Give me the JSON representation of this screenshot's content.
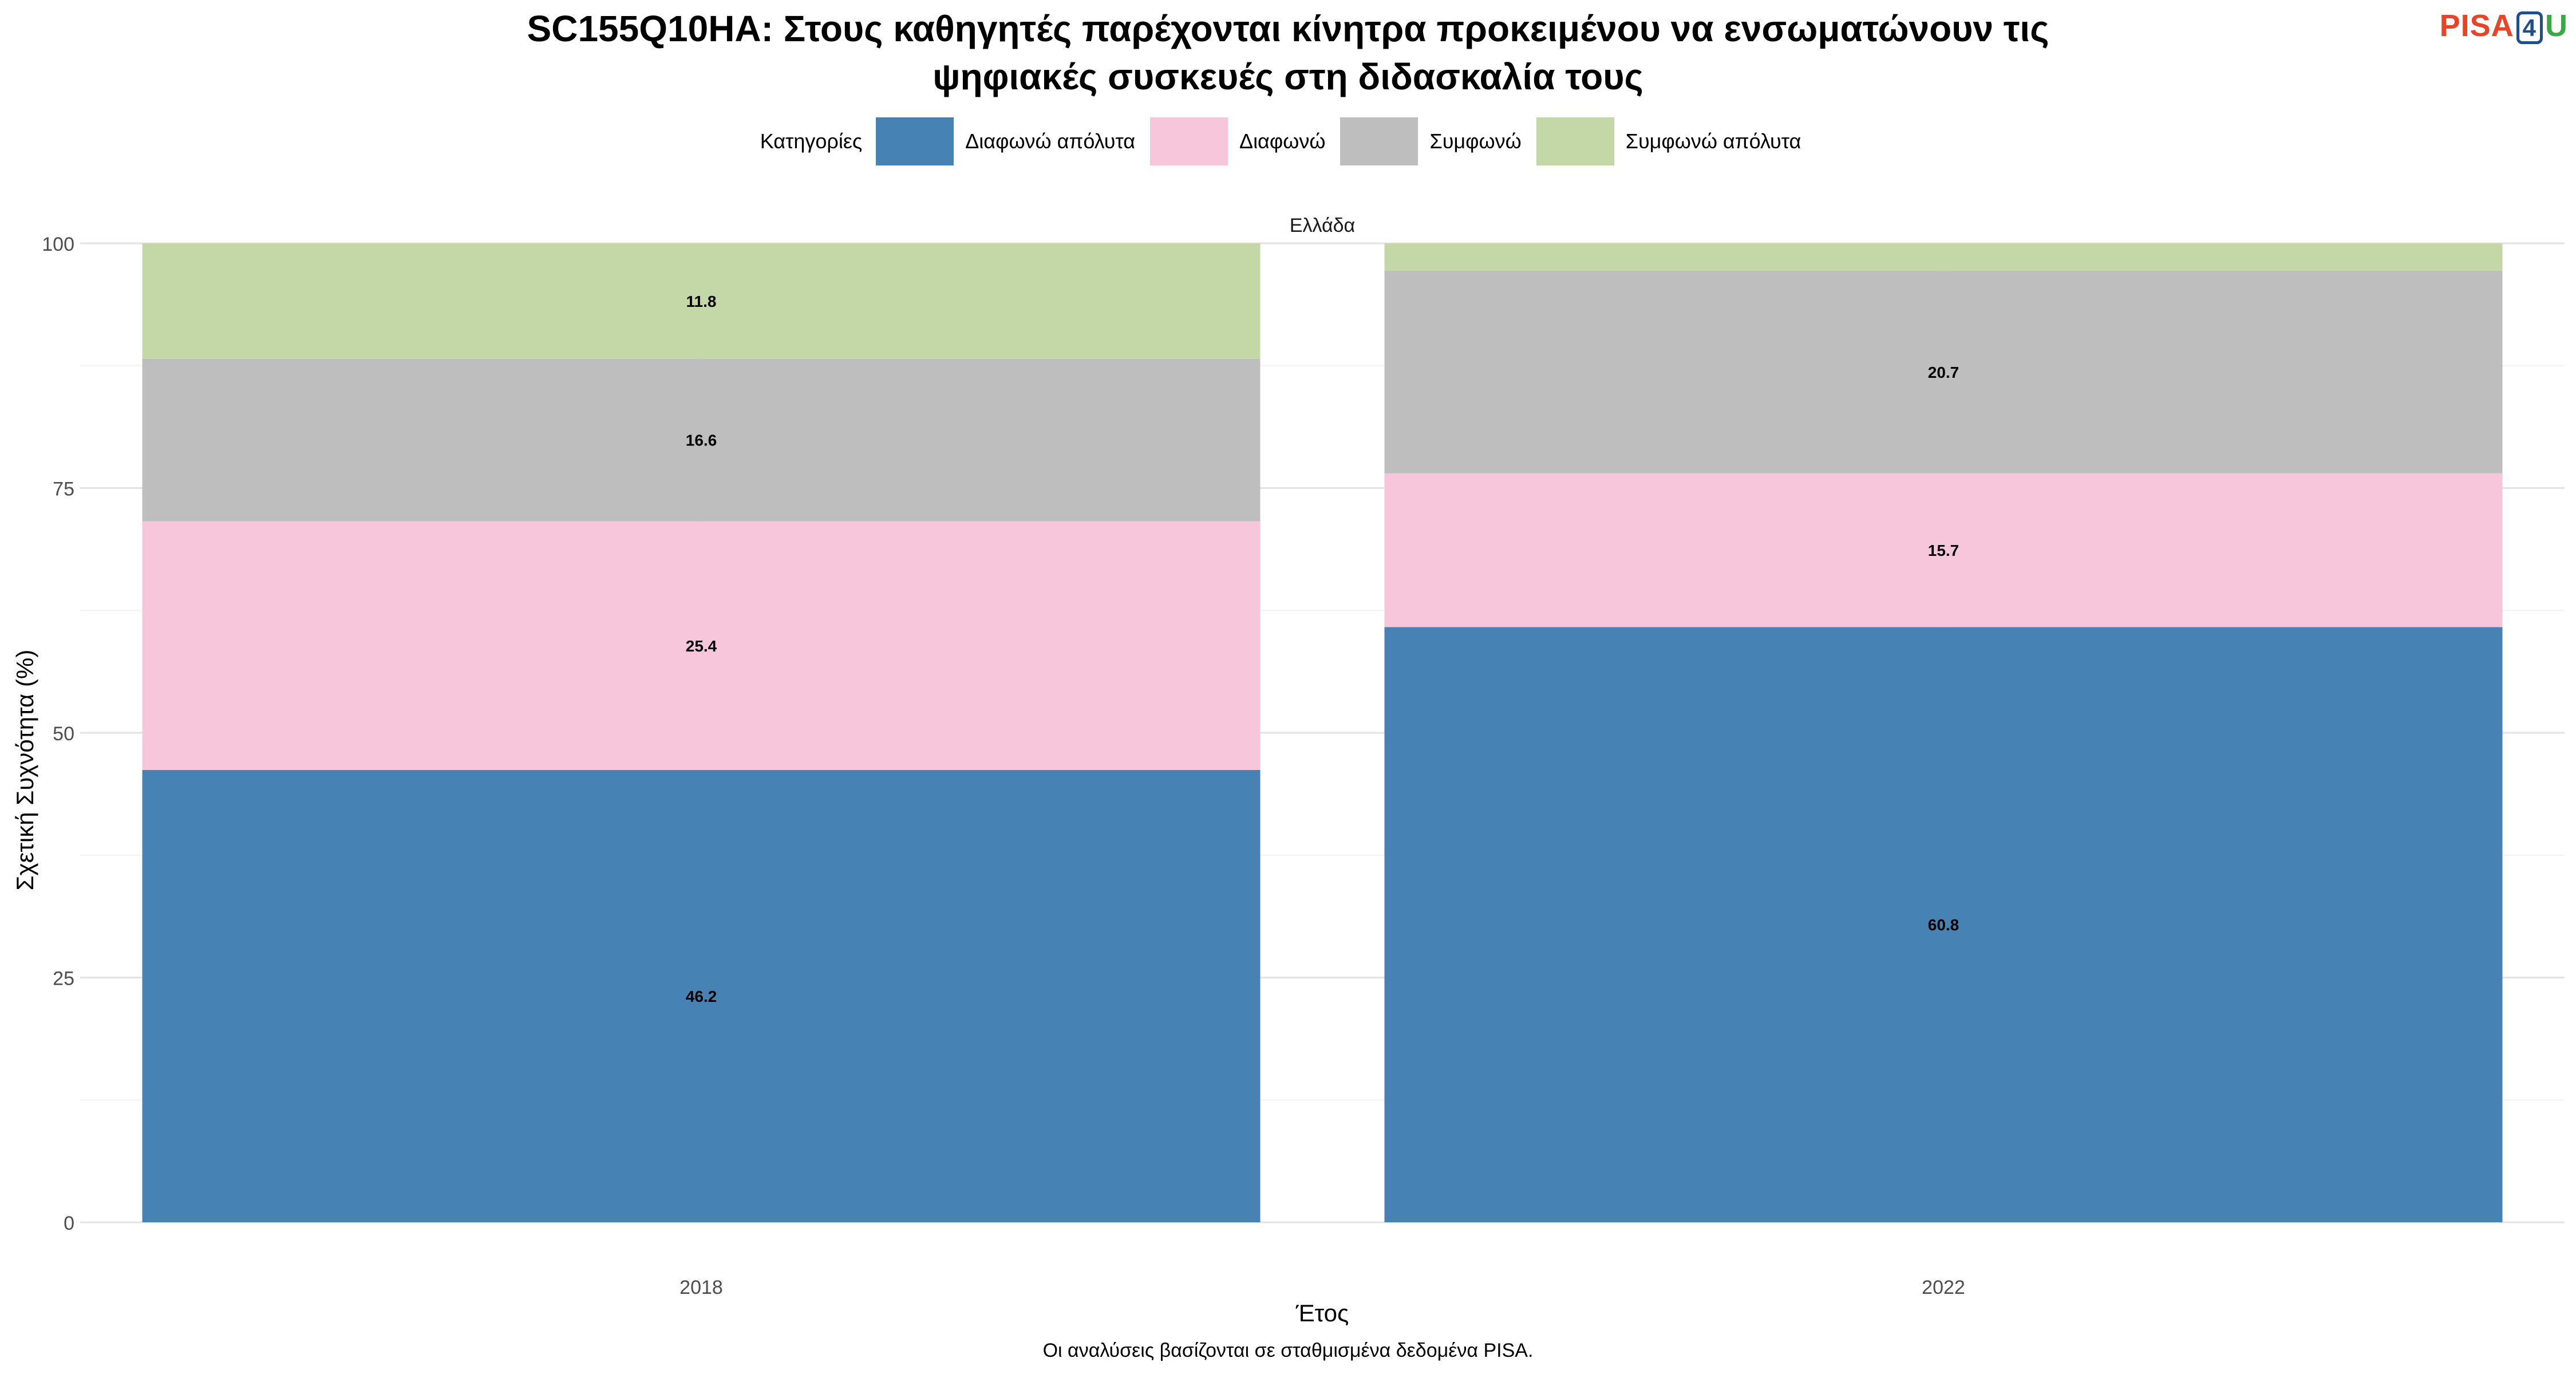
{
  "title_line1": "SC155Q10HA: Στους καθηγητές παρέχονται κίνητρα προκειμένου να ενσωματώνουν τις",
  "title_line2": "ψηφιακές συσκευές στη διδασκαλία τους",
  "logo": {
    "part1": "PISA",
    "part2": "4",
    "part3": "U"
  },
  "legend": {
    "title": "Κατηγορίες",
    "items": [
      {
        "label": "Διαφωνώ απόλυτα",
        "color": "#4682B4"
      },
      {
        "label": "Διαφωνώ",
        "color": "#F7C6DB"
      },
      {
        "label": "Συμφωνώ",
        "color": "#BEBEBE"
      },
      {
        "label": "Συμφωνώ απόλυτα",
        "color": "#C3D7A7"
      }
    ]
  },
  "panel_label": "Ελλάδα",
  "caption": "Οι αναλύσεις βασίζονται σε σταθμισμένα δεδομένα PISA.",
  "chart_data": {
    "type": "bar",
    "stacked": true,
    "categories": [
      "2018",
      "2022"
    ],
    "series": [
      {
        "name": "Διαφωνώ απόλυτα",
        "values": [
          46.2,
          60.8
        ],
        "color": "#4682B4"
      },
      {
        "name": "Διαφωνώ",
        "values": [
          25.4,
          15.7
        ],
        "color": "#F7C6DB"
      },
      {
        "name": "Συμφωνώ",
        "values": [
          16.6,
          20.7
        ],
        "color": "#BEBEBE"
      },
      {
        "name": "Συμφωνώ απόλυτα",
        "values": [
          11.8,
          2.8
        ],
        "color": "#C3D7A7"
      }
    ],
    "data_labels": [
      [
        "46.2",
        "60.8"
      ],
      [
        "25.4",
        "15.7"
      ],
      [
        "16.6",
        "20.7"
      ],
      [
        "11.8",
        ""
      ]
    ],
    "xlabel": "Έτος",
    "ylabel": "Σχετική Συχνότητα (%)",
    "ylim": [
      0,
      100
    ],
    "yticks": [
      0,
      25,
      50,
      75,
      100
    ],
    "grid": true,
    "legend_position": "top"
  }
}
